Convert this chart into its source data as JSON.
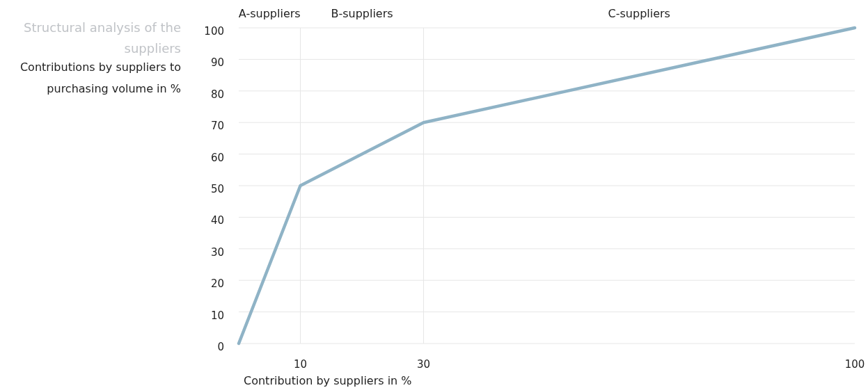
{
  "chart_data": {
    "type": "line",
    "title": "Structural analysis of the suppliers",
    "subtitle": "Contributions by suppliers to purchasing volume in %",
    "xlabel": "Contribution by suppliers in %",
    "x": [
      0,
      10,
      30,
      100
    ],
    "series": [
      {
        "color": "#8fb3c6",
        "values": [
          0,
          50,
          70,
          100
        ]
      }
    ],
    "xlim": [
      0,
      100
    ],
    "xticks": [
      10,
      30,
      100
    ],
    "ylim": [
      0,
      100
    ],
    "yticks": [
      0,
      10,
      20,
      30,
      40,
      50,
      60,
      70,
      80,
      90,
      100
    ],
    "grid": "y",
    "marker": "none",
    "line_style": "solid",
    "ref_lines": [
      {
        "axis": "x",
        "value": 10,
        "color": "#e6e6e6"
      },
      {
        "axis": "x",
        "value": 30,
        "color": "#e6e6e6"
      }
    ],
    "annotations": [
      "A-suppliers",
      "B-suppliers",
      "C-suppliers"
    ]
  }
}
